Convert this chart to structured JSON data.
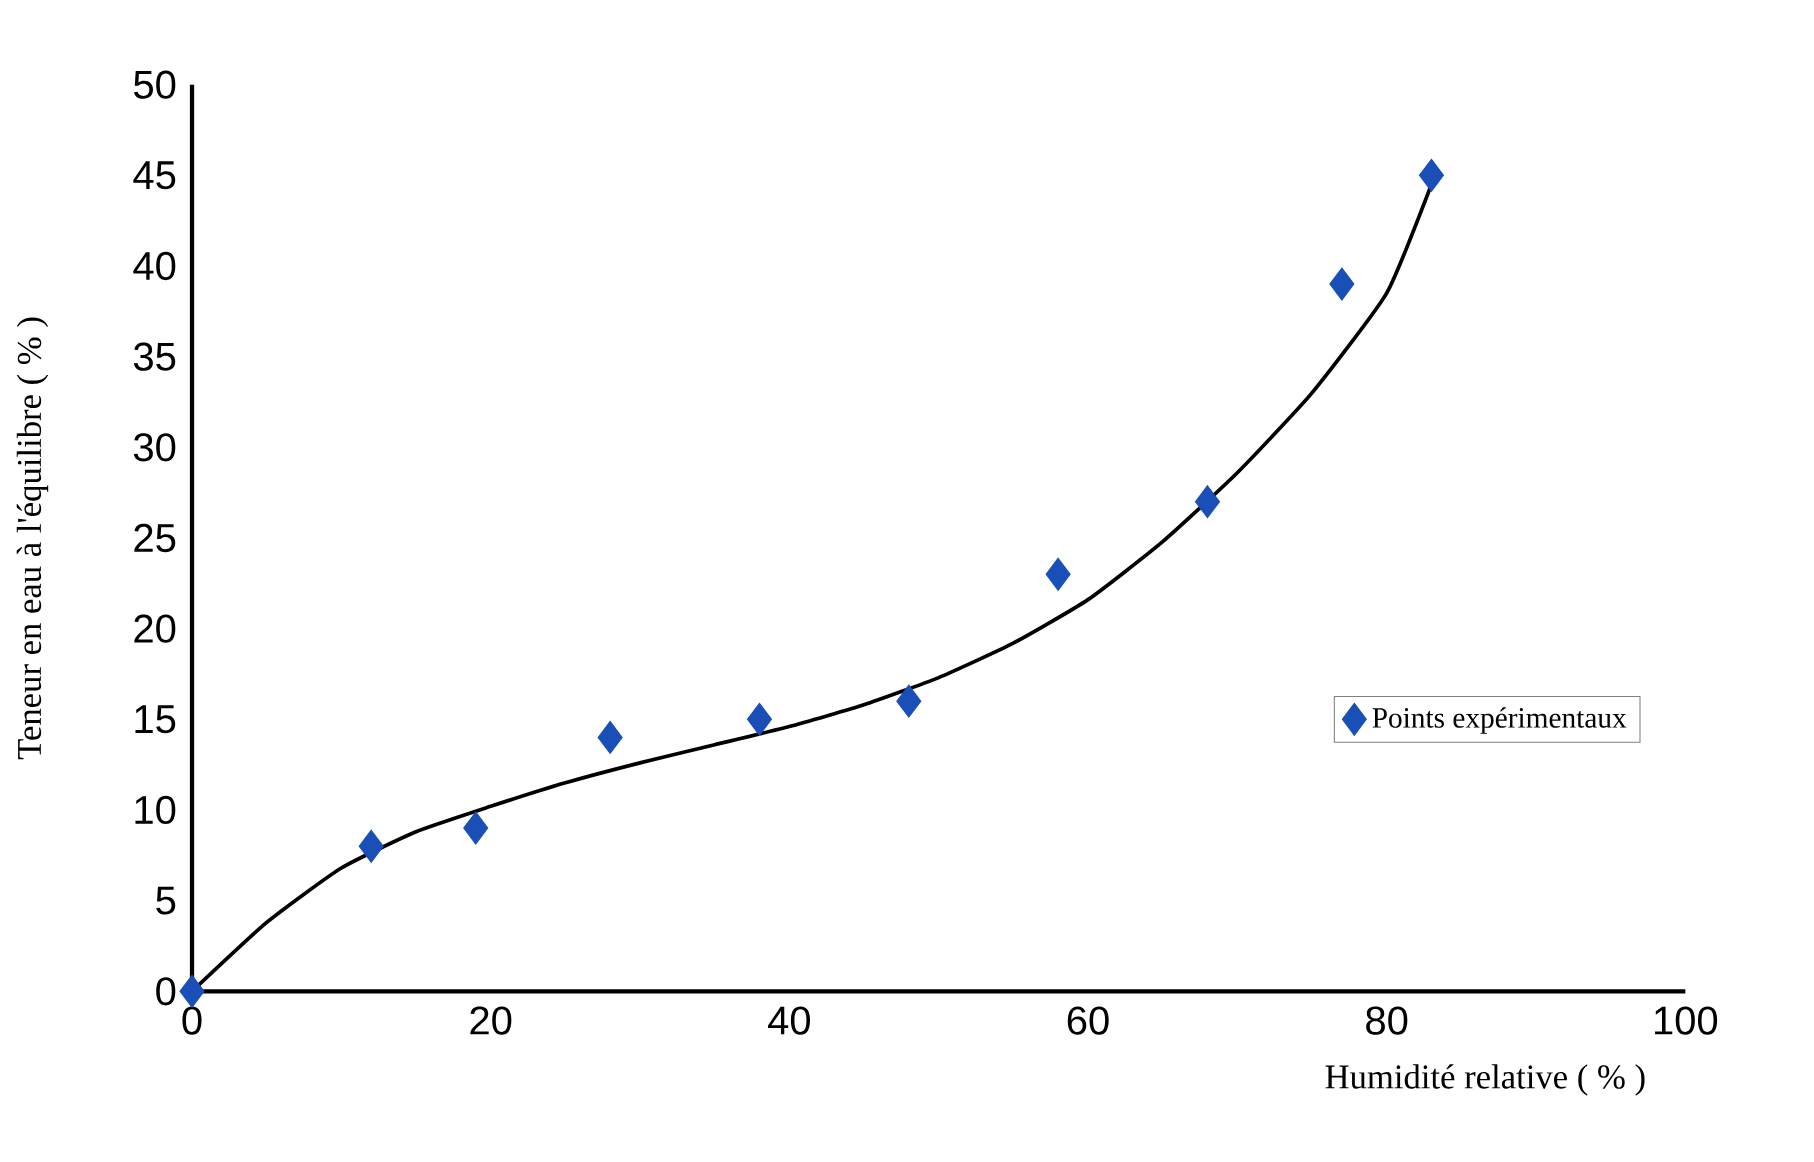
{
  "chart_data": {
    "type": "scatter",
    "xlabel": "Humidité relative ( % )",
    "ylabel": "Teneur en eau à l'équilibre ( % )",
    "series": [
      {
        "name": "Points expérimentaux",
        "color": "#1a4fb8",
        "marker": "diamond",
        "x": [
          0,
          12,
          19,
          28,
          38,
          48,
          58,
          68,
          77,
          83
        ],
        "values": [
          0,
          8,
          9,
          14,
          15,
          16,
          23,
          27,
          39,
          45
        ]
      },
      {
        "type": "line",
        "color": "#000000",
        "line_style": "solid",
        "x": [
          0,
          5,
          10,
          15,
          20,
          25,
          30,
          35,
          40,
          45,
          50,
          55,
          60,
          65,
          70,
          75,
          80,
          83
        ],
        "values": [
          0,
          3.8,
          6.8,
          8.8,
          10.2,
          11.5,
          12.6,
          13.6,
          14.6,
          15.8,
          17.3,
          19.2,
          21.6,
          24.8,
          28.6,
          33,
          38.5,
          44.5
        ]
      }
    ],
    "xlim": [
      0,
      100
    ],
    "ylim": [
      0,
      50
    ],
    "xticks": [
      0,
      20,
      40,
      60,
      80,
      100
    ],
    "yticks": [
      0,
      5,
      10,
      15,
      20,
      25,
      30,
      35,
      40,
      45,
      50
    ],
    "grid": false,
    "legend": "right"
  }
}
